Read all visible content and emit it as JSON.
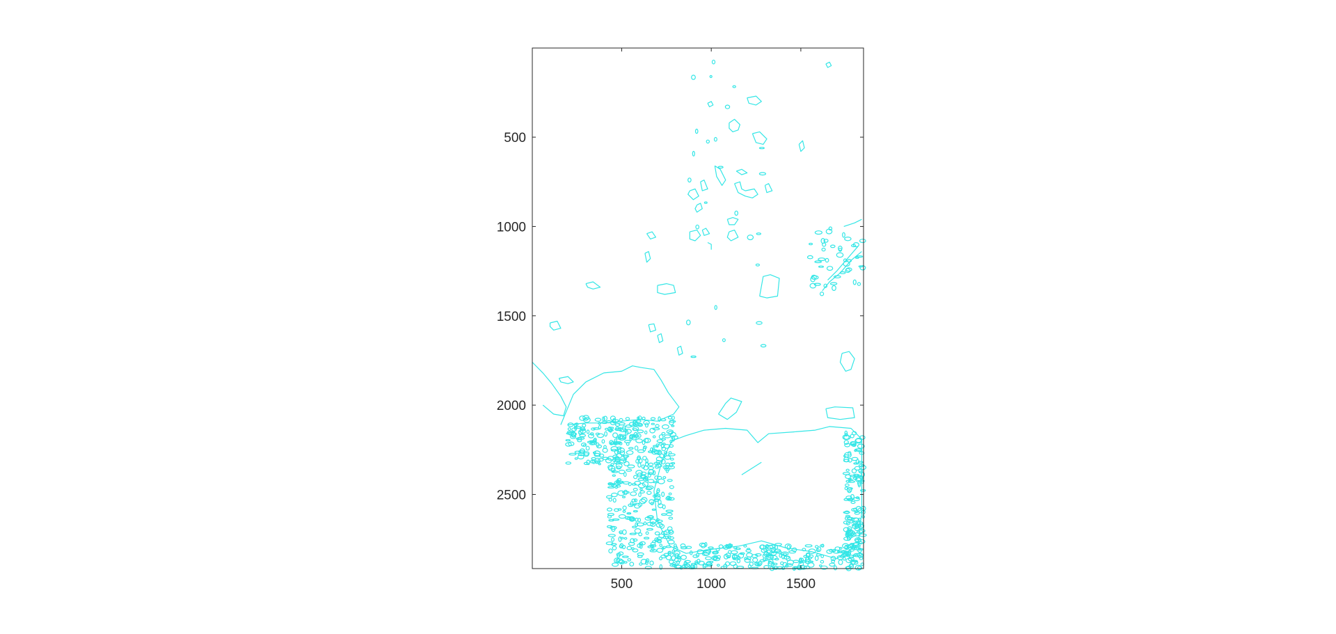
{
  "chart_data": {
    "type": "contour",
    "title": "",
    "xlabel": "",
    "ylabel": "",
    "xlim": [
      1,
      1850
    ],
    "ylim": [
      1,
      2915
    ],
    "y_reversed": true,
    "grid": false,
    "line_color": "#33e6e6",
    "x_ticks": [
      500,
      1000,
      1500
    ],
    "y_ticks": [
      500,
      1000,
      1500,
      2000,
      2500
    ],
    "x_tick_labels": [
      "500",
      "1000",
      "1500"
    ],
    "y_tick_labels": [
      "500",
      "1000",
      "1500",
      "2000",
      "2500"
    ],
    "paths": [
      [
        [
          1,
          1760
        ],
        [
          60,
          1820
        ],
        [
          110,
          1880
        ],
        [
          160,
          1950
        ],
        [
          190,
          2010
        ],
        [
          175,
          2060
        ],
        [
          120,
          2050
        ],
        [
          60,
          2000
        ]
      ],
      [
        [
          160,
          2110
        ],
        [
          230,
          1940
        ],
        [
          300,
          1870
        ],
        [
          400,
          1820
        ],
        [
          500,
          1810
        ],
        [
          560,
          1780
        ],
        [
          610,
          1790
        ],
        [
          680,
          1800
        ],
        [
          720,
          1860
        ],
        [
          760,
          1930
        ],
        [
          820,
          2010
        ],
        [
          790,
          2050
        ],
        [
          700,
          2090
        ],
        [
          600,
          2080
        ],
        [
          500,
          2090
        ],
        [
          400,
          2100
        ],
        [
          300,
          2100
        ],
        [
          200,
          2110
        ]
      ],
      [
        [
          780,
          2200
        ],
        [
          860,
          2170
        ],
        [
          960,
          2140
        ],
        [
          1080,
          2130
        ],
        [
          1200,
          2140
        ],
        [
          1260,
          2210
        ],
        [
          1320,
          2160
        ],
        [
          1460,
          2150
        ],
        [
          1580,
          2140
        ],
        [
          1660,
          2120
        ],
        [
          1780,
          2130
        ],
        [
          1840,
          2190
        ],
        [
          1840,
          2600
        ],
        [
          1820,
          2780
        ],
        [
          1700,
          2860
        ],
        [
          1560,
          2820
        ],
        [
          1420,
          2800
        ],
        [
          1280,
          2760
        ],
        [
          1150,
          2790
        ],
        [
          980,
          2810
        ],
        [
          860,
          2830
        ],
        [
          770,
          2790
        ],
        [
          700,
          2650
        ],
        [
          680,
          2480
        ],
        [
          720,
          2330
        ],
        [
          760,
          2240
        ],
        [
          780,
          2200
        ]
      ],
      [
        [
          1640,
          2020
        ],
        [
          1690,
          2010
        ],
        [
          1790,
          2015
        ],
        [
          1800,
          2070
        ],
        [
          1720,
          2080
        ],
        [
          1650,
          2070
        ],
        [
          1640,
          2020
        ]
      ],
      [
        [
          1040,
          2050
        ],
        [
          1080,
          1990
        ],
        [
          1110,
          1960
        ],
        [
          1170,
          1980
        ],
        [
          1140,
          2040
        ],
        [
          1090,
          2080
        ],
        [
          1040,
          2050
        ]
      ],
      [
        [
          1730,
          1710
        ],
        [
          1770,
          1700
        ],
        [
          1800,
          1740
        ],
        [
          1780,
          1800
        ],
        [
          1750,
          1810
        ],
        [
          1720,
          1760
        ],
        [
          1730,
          1710
        ]
      ],
      [
        [
          1170,
          2390
        ],
        [
          1280,
          2320
        ]
      ],
      [
        [
          1100,
          420
        ],
        [
          1130,
          400
        ],
        [
          1160,
          430
        ],
        [
          1150,
          460
        ],
        [
          1120,
          470
        ],
        [
          1100,
          450
        ],
        [
          1100,
          420
        ]
      ],
      [
        [
          1020,
          660
        ],
        [
          1050,
          680
        ],
        [
          1080,
          740
        ],
        [
          1060,
          770
        ],
        [
          1030,
          720
        ],
        [
          1020,
          660
        ]
      ],
      [
        [
          1200,
          280
        ],
        [
          1250,
          270
        ],
        [
          1280,
          300
        ],
        [
          1250,
          320
        ],
        [
          1210,
          310
        ],
        [
          1200,
          280
        ]
      ],
      [
        [
          1230,
          480
        ],
        [
          1270,
          470
        ],
        [
          1310,
          510
        ],
        [
          1290,
          540
        ],
        [
          1250,
          530
        ],
        [
          1230,
          480
        ]
      ],
      [
        [
          880,
          800
        ],
        [
          910,
          790
        ],
        [
          930,
          830
        ],
        [
          900,
          850
        ],
        [
          870,
          820
        ],
        [
          880,
          800
        ]
      ],
      [
        [
          940,
          750
        ],
        [
          960,
          740
        ],
        [
          980,
          790
        ],
        [
          950,
          800
        ],
        [
          940,
          750
        ]
      ],
      [
        [
          920,
          880
        ],
        [
          940,
          870
        ],
        [
          950,
          900
        ],
        [
          920,
          920
        ],
        [
          910,
          900
        ],
        [
          920,
          880
        ]
      ],
      [
        [
          1130,
          760
        ],
        [
          1160,
          750
        ],
        [
          1170,
          790
        ],
        [
          1190,
          800
        ],
        [
          1240,
          790
        ],
        [
          1260,
          820
        ],
        [
          1230,
          840
        ],
        [
          1190,
          830
        ],
        [
          1150,
          810
        ],
        [
          1130,
          760
        ]
      ],
      [
        [
          1300,
          770
        ],
        [
          1320,
          760
        ],
        [
          1340,
          800
        ],
        [
          1310,
          810
        ],
        [
          1300,
          770
        ]
      ],
      [
        [
          1090,
          960
        ],
        [
          1120,
          950
        ],
        [
          1150,
          960
        ],
        [
          1130,
          990
        ],
        [
          1100,
          990
        ],
        [
          1090,
          960
        ]
      ],
      [
        [
          880,
          1030
        ],
        [
          920,
          1020
        ],
        [
          940,
          1050
        ],
        [
          910,
          1080
        ],
        [
          880,
          1070
        ],
        [
          880,
          1030
        ]
      ],
      [
        [
          1100,
          1030
        ],
        [
          1130,
          1020
        ],
        [
          1150,
          1060
        ],
        [
          1110,
          1080
        ],
        [
          1090,
          1060
        ],
        [
          1100,
          1030
        ]
      ],
      [
        [
          950,
          1020
        ],
        [
          970,
          1010
        ],
        [
          990,
          1040
        ],
        [
          960,
          1050
        ],
        [
          950,
          1020
        ]
      ],
      [
        [
          980,
          1090
        ],
        [
          1000,
          1100
        ],
        [
          1000,
          1130
        ]
      ],
      [
        [
          1140,
          690
        ],
        [
          1170,
          680
        ],
        [
          1200,
          700
        ],
        [
          1170,
          710
        ],
        [
          1140,
          690
        ]
      ],
      [
        [
          300,
          1320
        ],
        [
          340,
          1310
        ],
        [
          380,
          1340
        ],
        [
          340,
          1350
        ],
        [
          310,
          1340
        ],
        [
          300,
          1320
        ]
      ],
      [
        [
          700,
          1330
        ],
        [
          750,
          1320
        ],
        [
          790,
          1330
        ],
        [
          800,
          1370
        ],
        [
          740,
          1380
        ],
        [
          700,
          1370
        ],
        [
          700,
          1330
        ]
      ],
      [
        [
          1270,
          1390
        ],
        [
          1290,
          1280
        ],
        [
          1330,
          1270
        ],
        [
          1380,
          1290
        ],
        [
          1370,
          1390
        ],
        [
          1310,
          1400
        ],
        [
          1270,
          1390
        ]
      ],
      [
        [
          640,
          1040
        ],
        [
          670,
          1030
        ],
        [
          690,
          1060
        ],
        [
          660,
          1070
        ],
        [
          640,
          1040
        ]
      ],
      [
        [
          630,
          1150
        ],
        [
          650,
          1140
        ],
        [
          660,
          1180
        ],
        [
          640,
          1200
        ],
        [
          630,
          1150
        ]
      ],
      [
        [
          100,
          1540
        ],
        [
          140,
          1530
        ],
        [
          160,
          1570
        ],
        [
          120,
          1580
        ],
        [
          100,
          1560
        ],
        [
          100,
          1540
        ]
      ],
      [
        [
          650,
          1550
        ],
        [
          680,
          1545
        ],
        [
          690,
          1580
        ],
        [
          660,
          1590
        ],
        [
          650,
          1550
        ]
      ],
      [
        [
          700,
          1610
        ],
        [
          720,
          1600
        ],
        [
          730,
          1640
        ],
        [
          710,
          1650
        ],
        [
          700,
          1610
        ]
      ],
      [
        [
          810,
          1680
        ],
        [
          830,
          1670
        ],
        [
          840,
          1710
        ],
        [
          820,
          1720
        ],
        [
          810,
          1680
        ]
      ],
      [
        [
          150,
          1850
        ],
        [
          200,
          1840
        ],
        [
          230,
          1870
        ],
        [
          200,
          1880
        ],
        [
          160,
          1870
        ],
        [
          150,
          1850
        ]
      ],
      [
        [
          980,
          310
        ],
        [
          1000,
          300
        ],
        [
          1010,
          320
        ],
        [
          990,
          330
        ],
        [
          980,
          310
        ]
      ],
      [
        [
          1620,
          1360
        ],
        [
          1660,
          1310
        ],
        [
          1720,
          1260
        ],
        [
          1780,
          1190
        ],
        [
          1840,
          1140
        ]
      ],
      [
        [
          1650,
          1300
        ],
        [
          1700,
          1250
        ],
        [
          1760,
          1180
        ],
        [
          1820,
          1110
        ]
      ],
      [
        [
          1740,
          1000
        ],
        [
          1800,
          980
        ],
        [
          1840,
          960
        ]
      ],
      [
        [
          1490,
          540
        ],
        [
          1510,
          520
        ],
        [
          1520,
          560
        ],
        [
          1500,
          580
        ],
        [
          1490,
          540
        ]
      ],
      [
        [
          1640,
          90
        ],
        [
          1660,
          80
        ],
        [
          1670,
          100
        ],
        [
          1650,
          110
        ],
        [
          1640,
          90
        ]
      ]
    ],
    "clusters": [
      {
        "x": [
          200,
          800
        ],
        "y": [
          2070,
          2330
        ],
        "count": 240
      },
      {
        "x": [
          430,
          780
        ],
        "y": [
          2330,
          2915
        ],
        "count": 240
      },
      {
        "x": [
          780,
          1840
        ],
        "y": [
          2780,
          2915
        ],
        "count": 230
      },
      {
        "x": [
          1750,
          1850
        ],
        "y": [
          2150,
          2915
        ],
        "count": 150
      },
      {
        "x": [
          1550,
          1850
        ],
        "y": [
          1000,
          1380
        ],
        "count": 45
      },
      {
        "x": [
          870,
          1350
        ],
        "y": [
          60,
          1740
        ],
        "count": 25
      }
    ]
  }
}
